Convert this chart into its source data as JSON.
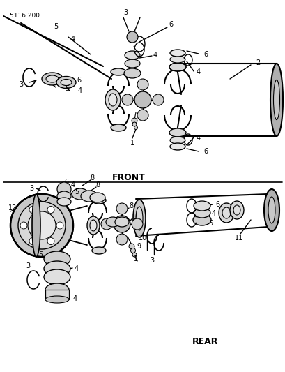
{
  "bg_color": "#ffffff",
  "line_color": "#000000",
  "title_code": "5116 200",
  "front_label": "FRONT",
  "rear_label": "REAR"
}
